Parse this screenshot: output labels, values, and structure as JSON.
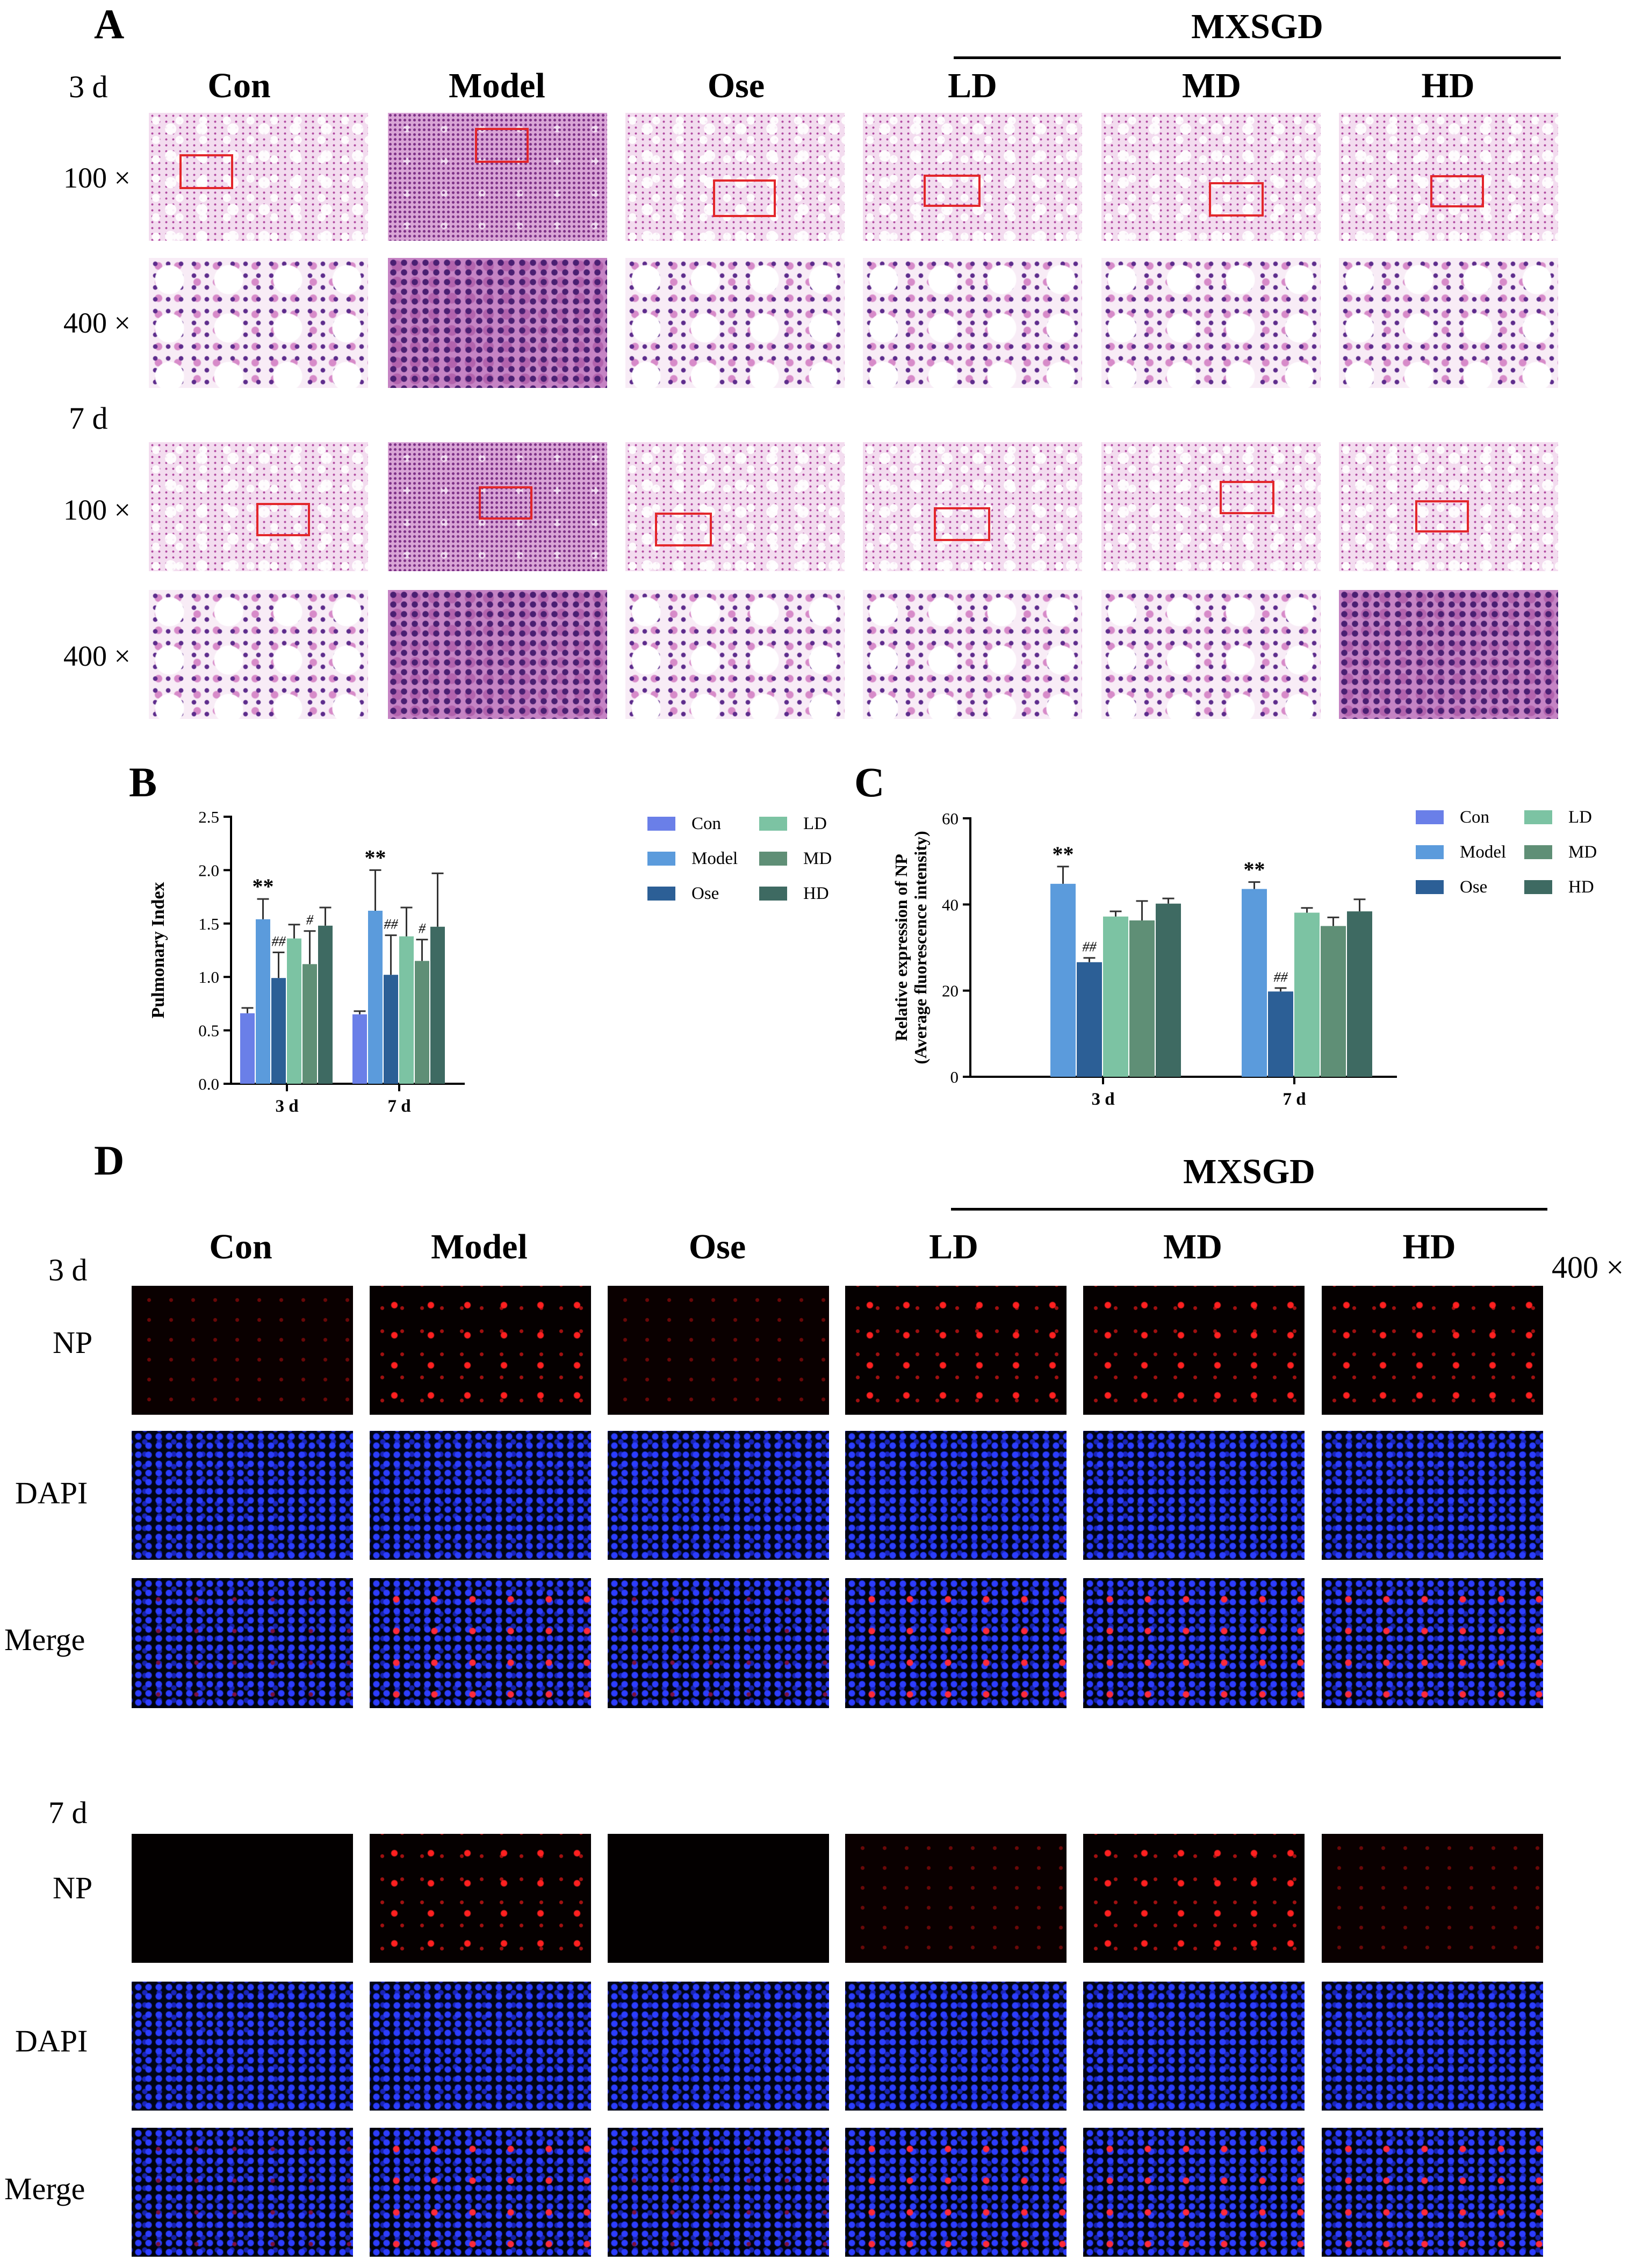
{
  "panel_a": {
    "letter": "A",
    "mxsgd_label": "MXSGD",
    "groups": [
      "Con",
      "Model",
      "Ose",
      "LD",
      "MD",
      "HD"
    ],
    "time_labels": [
      "3 d",
      "7 d"
    ],
    "magnifications": [
      "100 ×",
      "400 ×"
    ]
  },
  "panel_d": {
    "letter": "D",
    "mxsgd_label": "MXSGD",
    "groups": [
      "Con",
      "Model",
      "Ose",
      "LD",
      "MD",
      "HD"
    ],
    "time_labels": [
      "3 d",
      "7 d"
    ],
    "channels": [
      "NP",
      "DAPI",
      "Merge"
    ],
    "magnification": "400 ×"
  },
  "chart_data": [
    {
      "panel": "B",
      "type": "bar",
      "categories": [
        "3 d",
        "7 d"
      ],
      "ylabel": "Pulmonary Index",
      "ylim": [
        0,
        2.5
      ],
      "yticks": [
        "0.0",
        "0.5",
        "1.0",
        "1.5",
        "2.0",
        "2.5"
      ],
      "legend_placement": "top-right",
      "series": [
        {
          "name": "Con",
          "color": "#6a7fe8",
          "values": [
            0.66,
            0.65
          ],
          "errors": [
            0.05,
            0.03
          ],
          "annotations": [
            "",
            ""
          ]
        },
        {
          "name": "Model",
          "color": "#5b9bdc",
          "values": [
            1.54,
            1.62
          ],
          "errors": [
            0.19,
            0.38
          ],
          "annotations": [
            "**",
            "**"
          ]
        },
        {
          "name": "Ose",
          "color": "#2c5f96",
          "values": [
            0.99,
            1.02
          ],
          "errors": [
            0.24,
            0.37
          ],
          "annotations": [
            "##",
            "##"
          ]
        },
        {
          "name": "LD",
          "color": "#7cc3a3",
          "values": [
            1.36,
            1.38
          ],
          "errors": [
            0.13,
            0.27
          ],
          "annotations": [
            "",
            ""
          ]
        },
        {
          "name": "MD",
          "color": "#5f8f76",
          "values": [
            1.12,
            1.15
          ],
          "errors": [
            0.31,
            0.2
          ],
          "annotations": [
            "#",
            "#"
          ]
        },
        {
          "name": "HD",
          "color": "#3e6a62",
          "values": [
            1.48,
            1.47
          ],
          "errors": [
            0.17,
            0.5
          ],
          "annotations": [
            "",
            ""
          ]
        }
      ]
    },
    {
      "panel": "C",
      "type": "bar",
      "categories": [
        "3 d",
        "7 d"
      ],
      "ylabel": "Relative expression of NP",
      "ylabel2": "(Average fluorescence intensity)",
      "ylim": [
        0,
        60
      ],
      "yticks": [
        "0",
        "20",
        "40",
        "60"
      ],
      "legend_placement": "top-right",
      "series": [
        {
          "name": "Con",
          "color": "#6a7fe8",
          "values": [
            0,
            0
          ],
          "errors": [
            0,
            0
          ],
          "annotations": [
            "",
            ""
          ]
        },
        {
          "name": "Model",
          "color": "#5b9bdc",
          "values": [
            44.8,
            43.6
          ],
          "errors": [
            4.0,
            1.6
          ],
          "annotations": [
            "**",
            "**"
          ]
        },
        {
          "name": "Ose",
          "color": "#2c5f96",
          "values": [
            26.6,
            19.8
          ],
          "errors": [
            1.0,
            0.8
          ],
          "annotations": [
            "##",
            "##"
          ]
        },
        {
          "name": "LD",
          "color": "#7cc3a3",
          "values": [
            37.2,
            38.1
          ],
          "errors": [
            1.2,
            1.1
          ],
          "annotations": [
            "",
            ""
          ]
        },
        {
          "name": "MD",
          "color": "#5f8f76",
          "values": [
            36.3,
            35.0
          ],
          "errors": [
            4.5,
            2.0
          ],
          "annotations": [
            "",
            ""
          ]
        },
        {
          "name": "HD",
          "color": "#3e6a62",
          "values": [
            40.2,
            38.4
          ],
          "errors": [
            1.2,
            2.8
          ],
          "annotations": [
            "",
            ""
          ]
        }
      ]
    }
  ]
}
